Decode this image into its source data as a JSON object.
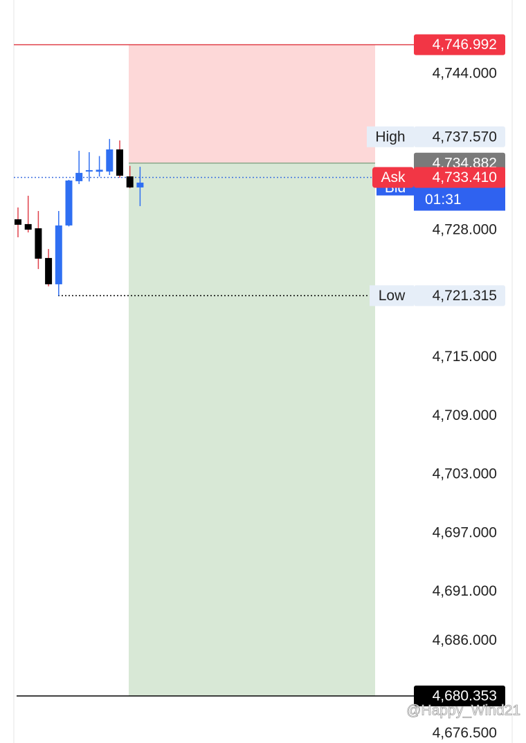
{
  "chart_data": {
    "type": "candlestick",
    "ylim": [
      4675.54,
      4751.57
    ],
    "yticks": [
      {
        "value": 4744,
        "label": "4,744.000"
      },
      {
        "value": 4728,
        "label": "4,728.000"
      },
      {
        "value": 4715,
        "label": "4,715.000"
      },
      {
        "value": 4709,
        "label": "4,709.000"
      },
      {
        "value": 4703,
        "label": "4,703.000"
      },
      {
        "value": 4697,
        "label": "4,697.000"
      },
      {
        "value": 4691,
        "label": "4,691.000"
      },
      {
        "value": 4686,
        "label": "4,686.000"
      },
      {
        "value": 4676.5,
        "label": "4,676.500"
      }
    ],
    "candles": {
      "open": [
        4729.13,
        4728.64,
        4728.21,
        4725.17,
        4722.48,
        4728.5,
        4733.03,
        4734.16,
        4734.0,
        4734.02,
        4736.28,
        4733.52,
        4732.39
      ],
      "high": [
        4730.34,
        4731.54,
        4729.98,
        4726.09,
        4729.98,
        4733.17,
        4736.14,
        4736.0,
        4735.6,
        4737.35,
        4737.2,
        4734.6,
        4734.5
      ],
      "low": [
        4727.29,
        4727.79,
        4724.04,
        4722.27,
        4721.3,
        4728.4,
        4732.74,
        4733.0,
        4733.5,
        4733.66,
        4733.38,
        4732.3,
        4730.48
      ],
      "close": [
        4728.57,
        4728.07,
        4725.1,
        4722.48,
        4728.5,
        4733.1,
        4733.88,
        4734.16,
        4734.2,
        4736.28,
        4733.59,
        4732.39,
        4732.88
      ]
    },
    "up_color": "#2f6ff2",
    "down_color": "#000000",
    "markers": [
      {
        "price": {
          "value": 4746.992,
          "label": "4,746.992"
        },
        "color": "#f23645",
        "text_color": "#ffffff",
        "line": "solid",
        "line_color": "#e0404a"
      },
      {
        "name": "High",
        "price": {
          "value": 4737.57,
          "label": "4,737.570"
        },
        "color": "#e6eef8",
        "text_color": "#222222"
      },
      {
        "price": {
          "value": 4734.882,
          "label": "4,734.882"
        },
        "color": "#7a7a7a",
        "text_color": "#ffffff"
      },
      {
        "name": "Bid",
        "countdown": "01:31",
        "color": "#2f62f0",
        "text_color": "#ffffff"
      },
      {
        "name": "Ask",
        "price": {
          "value": 4733.41,
          "label": "4,733.410"
        },
        "color": "#f23645",
        "text_color": "#ffffff",
        "line": "dotted",
        "line_color": "#3b6fe0"
      },
      {
        "name": "Low",
        "price": {
          "value": 4721.315,
          "label": "4,721.315"
        },
        "color": "#e6eef8",
        "text_color": "#222222",
        "line": "dotted",
        "line_color": "#000000"
      },
      {
        "price": {
          "value": 4680.353,
          "label": "4,680.353"
        },
        "color": "#000000",
        "text_color": "#ffffff",
        "line": "solid",
        "line_color": "#000000"
      }
    ],
    "position": {
      "stop_marker": 0,
      "entry_marker": 2,
      "target_marker": 6,
      "loss_color": "#fdd8d8",
      "profit_color": "#d8e8d6"
    },
    "watermark": "@Happy_Wind21"
  }
}
